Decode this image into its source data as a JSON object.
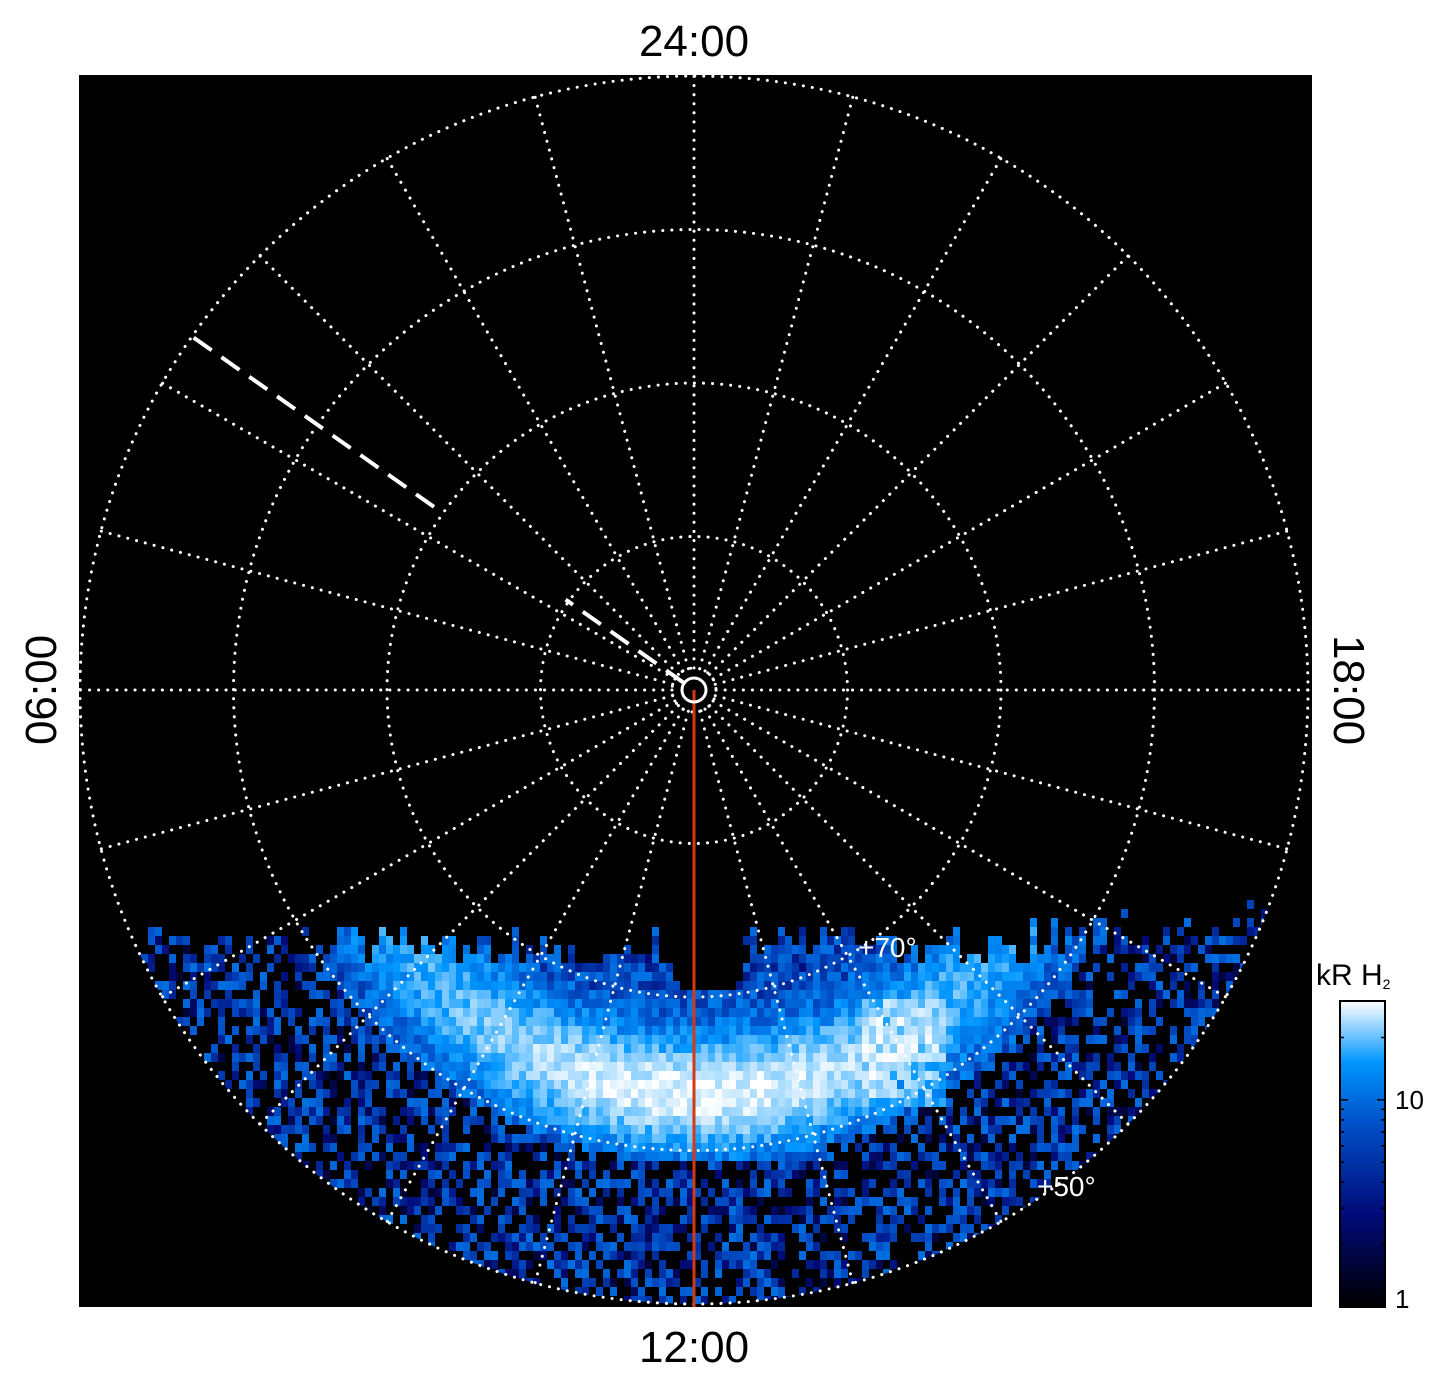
{
  "chart_data": {
    "type": "heatmap",
    "projection": "polar",
    "title": "",
    "local_time_labels": {
      "top": "24:00",
      "left": "06:00",
      "bottom": "12:00",
      "right": "18:00"
    },
    "latitude_rings_deg": [
      90,
      80,
      70,
      60,
      50
    ],
    "ring_labels": [
      "+70°",
      "+50°"
    ],
    "meridian_spacing_hours": 1,
    "grid": true,
    "colorbar": {
      "label": "kR H",
      "label_subscript": "2",
      "scale": "log",
      "range": [
        1,
        30
      ],
      "ticks": [
        {
          "value": 1,
          "label": "1"
        },
        {
          "value": 10,
          "label": "10"
        }
      ],
      "placement": "right",
      "colors": [
        "#000000",
        "#000a78",
        "#0050c8",
        "#0096ff",
        "#ffffff"
      ]
    },
    "colors": {
      "background": "#000000",
      "grid": "#ffffff",
      "noon_meridian": "#d43a12",
      "dashed_marker": "#ffffff"
    },
    "features": {
      "noon_meridian_line": "12:00",
      "dashed_marker_local_time": "~03:50"
    }
  }
}
